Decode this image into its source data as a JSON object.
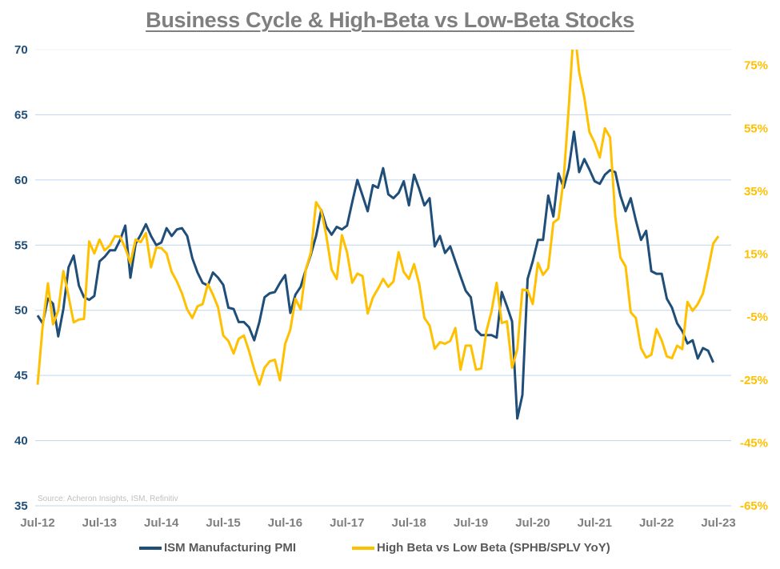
{
  "chart_data": {
    "type": "line",
    "title": "Business Cycle & High-Beta vs Low-Beta Stocks",
    "source": "Source: Acheron Insights, ISM, Refinitiv",
    "x_start": "Jul-12",
    "frequency": "monthly",
    "x_tick_labels": [
      "Jul-12",
      "Jul-13",
      "Jul-14",
      "Jul-15",
      "Jul-16",
      "Jul-17",
      "Jul-18",
      "Jul-19",
      "Jul-20",
      "Jul-21",
      "Jul-22",
      "Jul-23"
    ],
    "y_left": {
      "range": [
        35,
        70
      ],
      "ticks": [
        35,
        40,
        45,
        50,
        55,
        60,
        65,
        70
      ],
      "color": "#1f4e79"
    },
    "y_right": {
      "range": [
        -65,
        80
      ],
      "ticks": [
        -65,
        -45,
        -25,
        -5,
        15,
        35,
        55,
        75
      ],
      "tick_labels": [
        "-65%",
        "-45%",
        "-25%",
        "-5%",
        "15%",
        "35%",
        "55%",
        "75%"
      ],
      "unit": "%",
      "color": "#ffc000"
    },
    "grid": true,
    "legend_position": "bottom",
    "series": [
      {
        "name": "ISM Manufacturing PMI",
        "axis": "left",
        "color": "#1f4e79",
        "values": [
          49.6,
          49.0,
          50.9,
          50.5,
          48.0,
          50.1,
          53.3,
          54.2,
          51.9,
          51.0,
          50.8,
          51.1,
          53.75,
          54.1,
          54.6,
          54.6,
          55.4,
          56.5,
          52.5,
          55.1,
          55.8,
          56.6,
          55.7,
          55.0,
          55.2,
          56.3,
          55.7,
          56.2,
          56.3,
          55.7,
          54.0,
          52.9,
          52.1,
          51.9,
          52.9,
          52.5,
          51.95,
          50.2,
          50.1,
          49.1,
          49.1,
          48.7,
          47.7,
          49.1,
          51.0,
          51.3,
          51.4,
          52.1,
          52.7,
          49.8,
          51.2,
          51.8,
          53.1,
          54.3,
          55.7,
          57.7,
          56.4,
          55.8,
          56.4,
          56.2,
          56.5,
          58.3,
          60.0,
          58.8,
          57.6,
          59.6,
          59.4,
          60.9,
          58.9,
          58.6,
          59.0,
          59.9,
          58.05,
          60.4,
          59.3,
          58.05,
          58.6,
          54.9,
          55.7,
          54.4,
          54.9,
          53.75,
          52.6,
          51.5,
          51.0,
          48.5,
          48.1,
          48.1,
          48.1,
          47.9,
          51.4,
          50.3,
          49.15,
          41.7,
          43.5,
          52.4,
          53.75,
          55.4,
          55.4,
          58.8,
          57.2,
          60.5,
          59.4,
          60.9,
          63.7,
          60.6,
          61.6,
          60.8,
          59.9,
          59.7,
          60.4,
          60.75,
          60.6,
          58.8,
          57.6,
          58.6,
          56.9,
          55.4,
          56.1,
          53.0,
          52.8,
          52.8,
          50.9,
          50.2,
          49.0,
          48.4,
          47.45,
          47.7,
          46.3,
          47.1,
          46.9,
          46.0
        ]
      },
      {
        "name": "High Beta vs Low Beta (SPHB/SPLV YoY)",
        "axis": "right",
        "color": "#ffc000",
        "values": [
          -26.5,
          -7.7,
          5.7,
          -7.3,
          -3.0,
          9.6,
          1.6,
          -6.7,
          -5.8,
          -5.6,
          19.0,
          15.2,
          19.6,
          16.2,
          17.7,
          20.7,
          20.5,
          16.9,
          12.2,
          19.6,
          18.8,
          21.7,
          10.8,
          17.1,
          16.9,
          15.2,
          9.3,
          6.3,
          2.5,
          -2.6,
          -5.3,
          -1.6,
          -0.9,
          5.5,
          2.1,
          -1.9,
          -10.9,
          -12.6,
          -16.6,
          -11.9,
          -10.9,
          -15.8,
          -21.7,
          -26.5,
          -21.1,
          -19.1,
          -18.6,
          -25.1,
          -13.5,
          -9.0,
          0.8,
          -2.6,
          10.1,
          15.6,
          31.5,
          28.9,
          20.7,
          10.1,
          7.1,
          21.0,
          15.6,
          5.9,
          8.8,
          8.0,
          -3.9,
          1.2,
          4.0,
          7.1,
          4.6,
          6.3,
          15.6,
          9.3,
          7.1,
          11.8,
          5.4,
          -5.3,
          -7.7,
          -15.1,
          -13.0,
          -13.5,
          -12.6,
          -8.5,
          -21.7,
          -14.1,
          -14.1,
          -21.7,
          -21.4,
          -9.6,
          -3.3,
          5.9,
          -6.9,
          -6.4,
          -21.1,
          -15.3,
          3.7,
          3.5,
          -0.9,
          12.2,
          8.4,
          10.5,
          25.0,
          26.2,
          38.9,
          61.8,
          88,
          72.9,
          64.8,
          53.8,
          50.4,
          45.7,
          55.0,
          52.1,
          27.0,
          13.9,
          11.1,
          -3.5,
          -5.3,
          -14.9,
          -17.9,
          -17.0,
          -8.8,
          -12.4,
          -17.5,
          -18.1,
          -14.1,
          -15.2,
          -0.2,
          -3.0,
          -0.9,
          2.5,
          10.1,
          18.4,
          20.7
        ]
      }
    ]
  }
}
